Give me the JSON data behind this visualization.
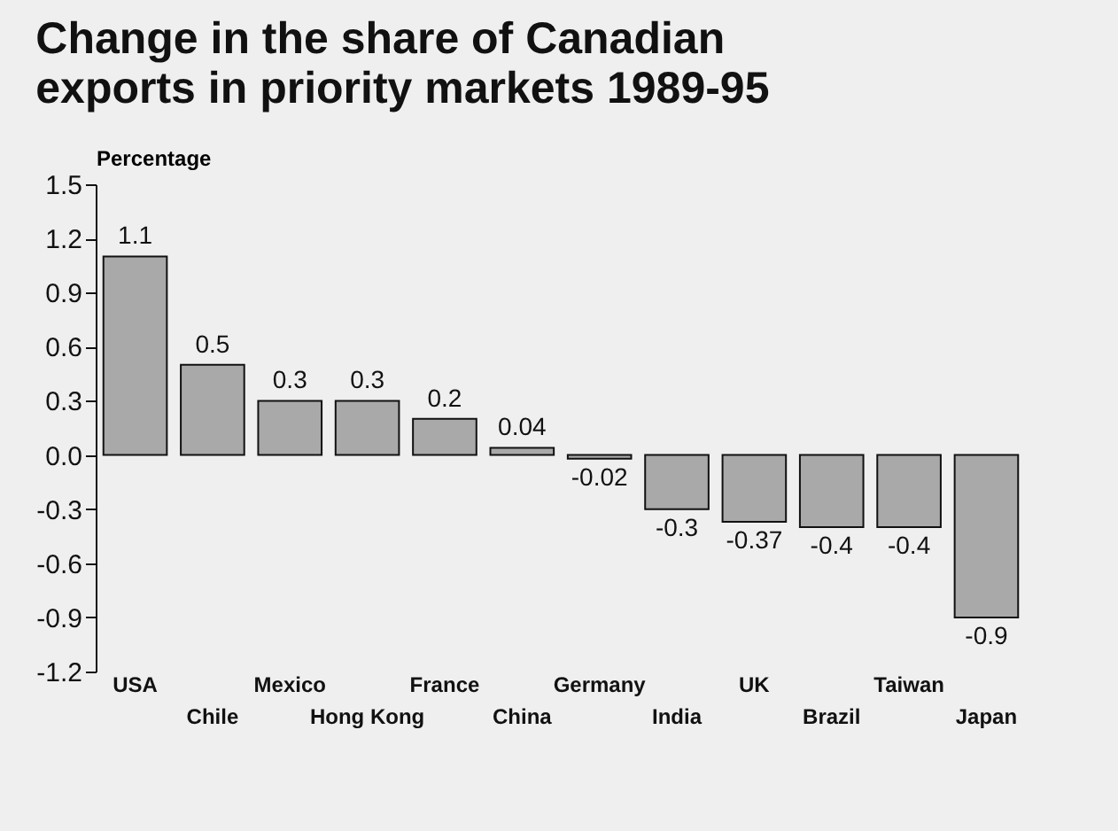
{
  "chart_data": {
    "type": "bar",
    "title": "Change in the share of Canadian exports in priority markets 1989-95",
    "ylabel": "Percentage",
    "categories": [
      "USA",
      "Chile",
      "Mexico",
      "Hong Kong",
      "France",
      "China",
      "Germany",
      "India",
      "UK",
      "Brazil",
      "Taiwan",
      "Japan"
    ],
    "values": [
      1.1,
      0.5,
      0.3,
      0.3,
      0.2,
      0.04,
      -0.02,
      -0.3,
      -0.37,
      -0.4,
      -0.4,
      -0.9
    ],
    "color": "#a9a9a9",
    "ylim": [
      -1.2,
      1.5
    ],
    "yticks": [
      1.5,
      1.2,
      0.9,
      0.6,
      0.3,
      {
        "value": 0,
        "label": "0.0"
      },
      -0.3,
      -0.6,
      -0.9,
      -1.2
    ],
    "data_labels": true,
    "grid": false
  }
}
